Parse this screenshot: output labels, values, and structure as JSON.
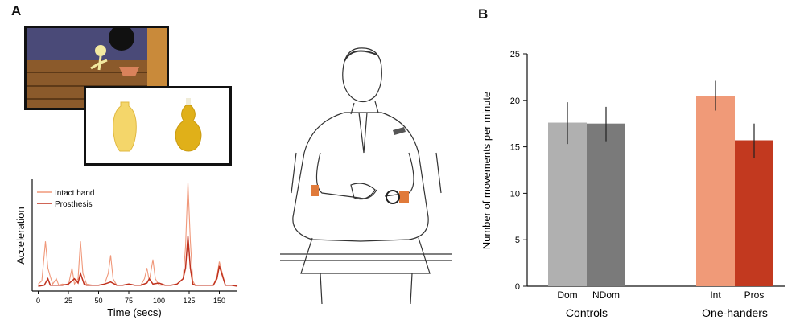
{
  "panels": {
    "a": "A",
    "b": "B"
  },
  "colors": {
    "intact": "#f0987a",
    "prosthesis": "#c0321e",
    "dom": "#b0b0b0",
    "ndom": "#7a7a7a",
    "int": "#f09a78",
    "pros": "#c2391f"
  },
  "images": {
    "cartoon": "cartoon-scene",
    "vases": "two-yellow-vases",
    "participant": "seated-person-sketch"
  },
  "chart_data": [
    {
      "type": "line",
      "title": "",
      "xlabel": "Time (secs)",
      "ylabel": "Acceleration",
      "xlim": [
        -5,
        165
      ],
      "ylim": [
        0,
        1
      ],
      "x_ticks": [
        0,
        25,
        50,
        75,
        100,
        125,
        150
      ],
      "legend_position": "top-left",
      "series": [
        {
          "name": "Intact hand",
          "x": [
            0,
            3,
            6,
            8,
            10,
            12,
            15,
            17,
            20,
            25,
            28,
            30,
            33,
            35,
            37,
            40,
            45,
            50,
            55,
            58,
            60,
            62,
            65,
            70,
            75,
            80,
            85,
            88,
            90,
            92,
            95,
            97,
            100,
            105,
            110,
            115,
            120,
            122,
            124,
            126,
            128,
            130,
            135,
            140,
            145,
            148,
            150,
            155,
            160,
            165
          ],
          "y": [
            0.05,
            0.08,
            0.45,
            0.2,
            0.12,
            0.05,
            0.1,
            0.04,
            0.05,
            0.04,
            0.2,
            0.05,
            0.1,
            0.45,
            0.15,
            0.05,
            0.04,
            0.04,
            0.05,
            0.15,
            0.32,
            0.1,
            0.04,
            0.04,
            0.05,
            0.04,
            0.04,
            0.1,
            0.2,
            0.08,
            0.28,
            0.1,
            0.04,
            0.04,
            0.04,
            0.05,
            0.1,
            0.4,
            1.0,
            0.45,
            0.08,
            0.04,
            0.04,
            0.04,
            0.04,
            0.12,
            0.26,
            0.04,
            0.04,
            0.04
          ]
        },
        {
          "name": "Prosthesis",
          "x": [
            0,
            5,
            8,
            10,
            15,
            20,
            25,
            30,
            33,
            35,
            38,
            40,
            45,
            50,
            55,
            60,
            65,
            70,
            75,
            80,
            85,
            90,
            92,
            95,
            100,
            105,
            110,
            115,
            120,
            122,
            124,
            126,
            128,
            130,
            135,
            140,
            145,
            148,
            150,
            155,
            160,
            165
          ],
          "y": [
            0.03,
            0.04,
            0.1,
            0.04,
            0.04,
            0.04,
            0.05,
            0.1,
            0.06,
            0.15,
            0.05,
            0.04,
            0.04,
            0.04,
            0.05,
            0.07,
            0.04,
            0.04,
            0.05,
            0.04,
            0.04,
            0.06,
            0.1,
            0.05,
            0.06,
            0.04,
            0.04,
            0.05,
            0.1,
            0.2,
            0.5,
            0.2,
            0.05,
            0.04,
            0.04,
            0.04,
            0.04,
            0.1,
            0.22,
            0.04,
            0.04,
            0.03
          ]
        }
      ]
    },
    {
      "type": "bar",
      "title": "",
      "ylabel": "Number of movements per minute",
      "ylim": [
        0,
        25
      ],
      "y_ticks": [
        0,
        5,
        10,
        15,
        20,
        25
      ],
      "groups": [
        {
          "name": "Controls",
          "bars": [
            {
              "label": "Dom",
              "value": 17.6,
              "err_low": 15.3,
              "err_high": 19.8
            },
            {
              "label": "NDom",
              "value": 17.5,
              "err_low": 15.6,
              "err_high": 19.3
            }
          ]
        },
        {
          "name": "One-handers",
          "bars": [
            {
              "label": "Int",
              "value": 20.5,
              "err_low": 18.9,
              "err_high": 22.1
            },
            {
              "label": "Pros",
              "value": 15.7,
              "err_low": 13.8,
              "err_high": 17.5
            }
          ]
        }
      ]
    }
  ]
}
